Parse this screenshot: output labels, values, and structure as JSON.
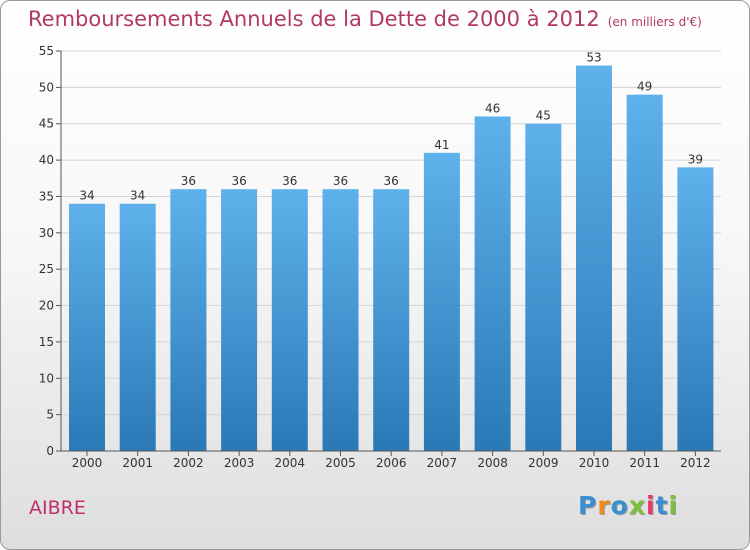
{
  "chart_data": {
    "type": "bar",
    "title": "Remboursements Annuels de la Dette de 2000 à 2012",
    "subtitle": "(en milliers d'€)",
    "categories": [
      "2000",
      "2001",
      "2002",
      "2003",
      "2004",
      "2005",
      "2006",
      "2007",
      "2008",
      "2009",
      "2010",
      "2011",
      "2012"
    ],
    "values": [
      34,
      34,
      36,
      36,
      36,
      36,
      36,
      41,
      46,
      45,
      53,
      49,
      39
    ],
    "ylim": [
      0,
      55
    ],
    "yticks": [
      0,
      5,
      10,
      15,
      20,
      25,
      30,
      35,
      40,
      45,
      50,
      55
    ],
    "grid": true,
    "xlabel": "",
    "ylabel": ""
  },
  "footer": {
    "commune": "AIBRE",
    "logo_letters": [
      "P",
      "r",
      "o",
      "x",
      "i",
      "t",
      "i"
    ]
  },
  "colors": {
    "bar_top": "#5eb1ea",
    "bar_bottom": "#2a79b7",
    "title": "#b03a63",
    "logo": [
      "#3a8fd0",
      "#f08a1c",
      "#3a8fd0",
      "#7bbf3a",
      "#e23c6a",
      "#3a8fd0",
      "#7bbf3a"
    ]
  }
}
